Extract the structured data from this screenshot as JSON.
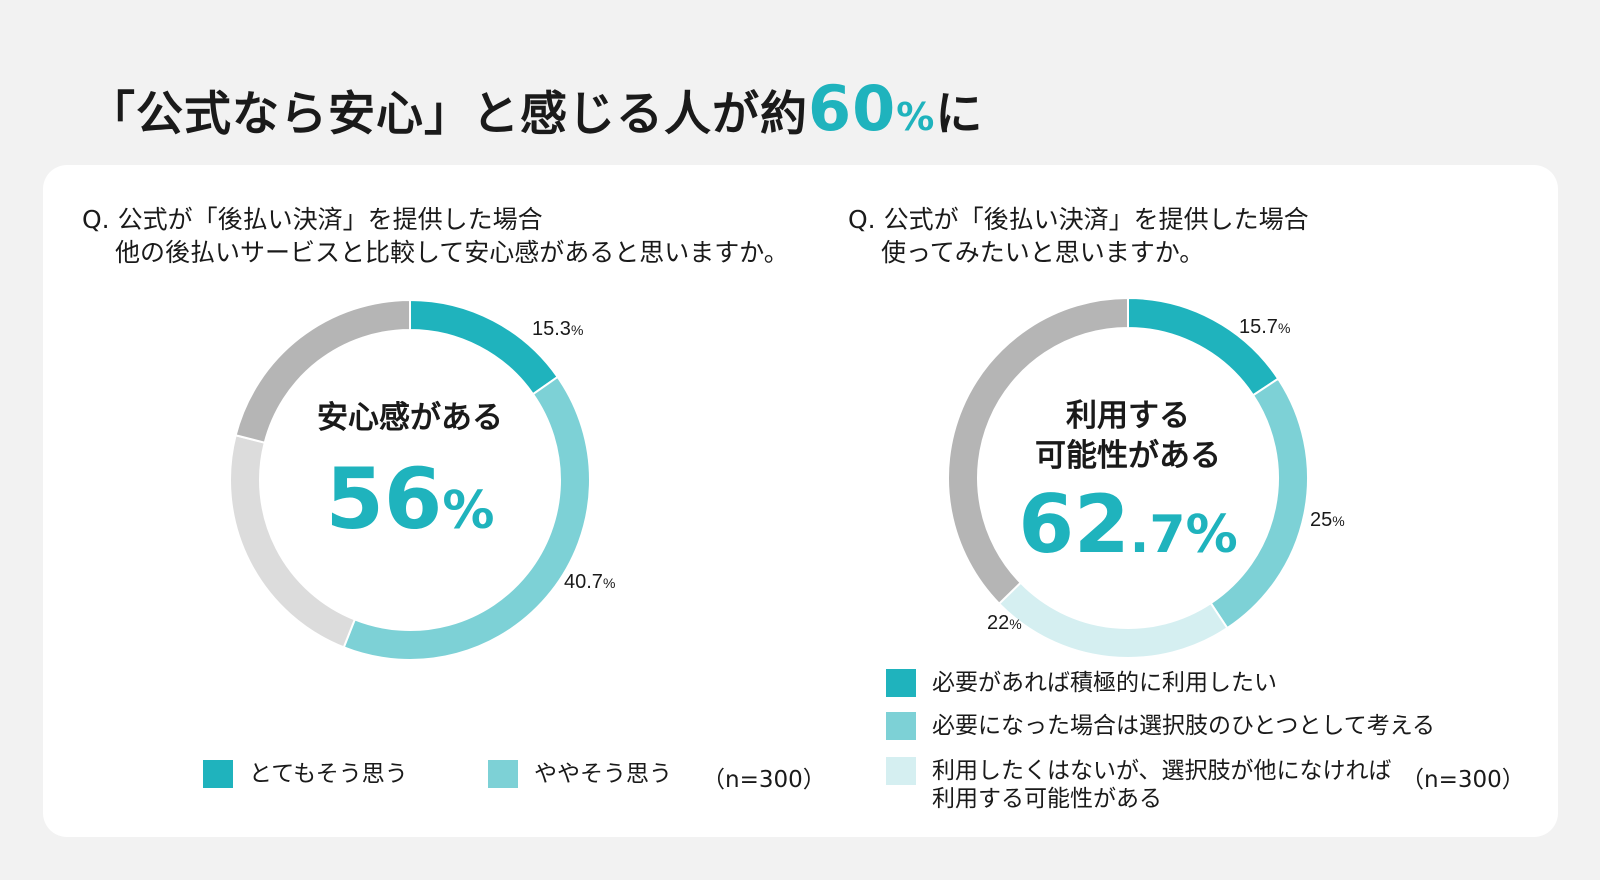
{
  "headline": {
    "prefix": "「公式なら安心」と感じる人が約",
    "number": "60",
    "unit": "%",
    "suffix": "に"
  },
  "colors": {
    "dark": "#1fb3bd",
    "medium": "#7dd1d6",
    "light": "#d5eff1",
    "gray": "#b5b5b5",
    "lightgray": "#dcdcdc"
  },
  "left": {
    "question_line1": "Q. 公式が「後払い決済」を提供した場合",
    "question_line2": "他の後払いサービスと比較して安心感があると思いますか。",
    "center_title": "安心感がある",
    "center_number": "56",
    "center_unit": "%",
    "legend": [
      {
        "label": "とてもそう思う",
        "color": "#1fb3bd"
      },
      {
        "label": "ややそう思う",
        "color": "#7dd1d6"
      }
    ],
    "n_note": "（n=300）"
  },
  "right": {
    "question_line1": "Q. 公式が「後払い決済」を提供した場合",
    "question_line2": "使ってみたいと思いますか。",
    "center_title": "利用する\n可能性がある",
    "center_number": "62",
    "center_decimal": ".7",
    "center_unit": "%",
    "legend": [
      {
        "label": "必要があれば積極的に利用したい",
        "color": "#1fb3bd"
      },
      {
        "label": "必要になった場合は選択肢のひとつとして考える",
        "color": "#7dd1d6"
      },
      {
        "label": "利用したくはないが、選択肢が他になければ\n利用する可能性がある",
        "color": "#d5eff1"
      }
    ],
    "n_note": "（n=300）"
  },
  "chart_data": [
    {
      "type": "pie",
      "title": "安心感がある 56%",
      "series": [
        {
          "name": "とてもそう思う",
          "value": 15.3,
          "label": "15.3",
          "color": "#1fb3bd"
        },
        {
          "name": "ややそう思う",
          "value": 40.7,
          "label": "40.7",
          "color": "#7dd1d6"
        },
        {
          "value": 23.0,
          "color": "#dcdcdc"
        },
        {
          "value": 21.0,
          "color": "#b5b5b5"
        }
      ]
    },
    {
      "type": "pie",
      "title": "利用する可能性がある 62.7%",
      "series": [
        {
          "name": "必要があれば積極的に利用したい",
          "value": 15.7,
          "label": "15.7",
          "color": "#1fb3bd"
        },
        {
          "name": "必要になった場合は選択肢のひとつとして考える",
          "value": 25,
          "label": "25",
          "color": "#7dd1d6"
        },
        {
          "name": "利用したくはないが、選択肢が他になければ利用する可能性がある",
          "value": 22,
          "label": "22",
          "color": "#d5eff1"
        },
        {
          "value": 37.3,
          "color": "#b5b5b5"
        }
      ]
    }
  ]
}
